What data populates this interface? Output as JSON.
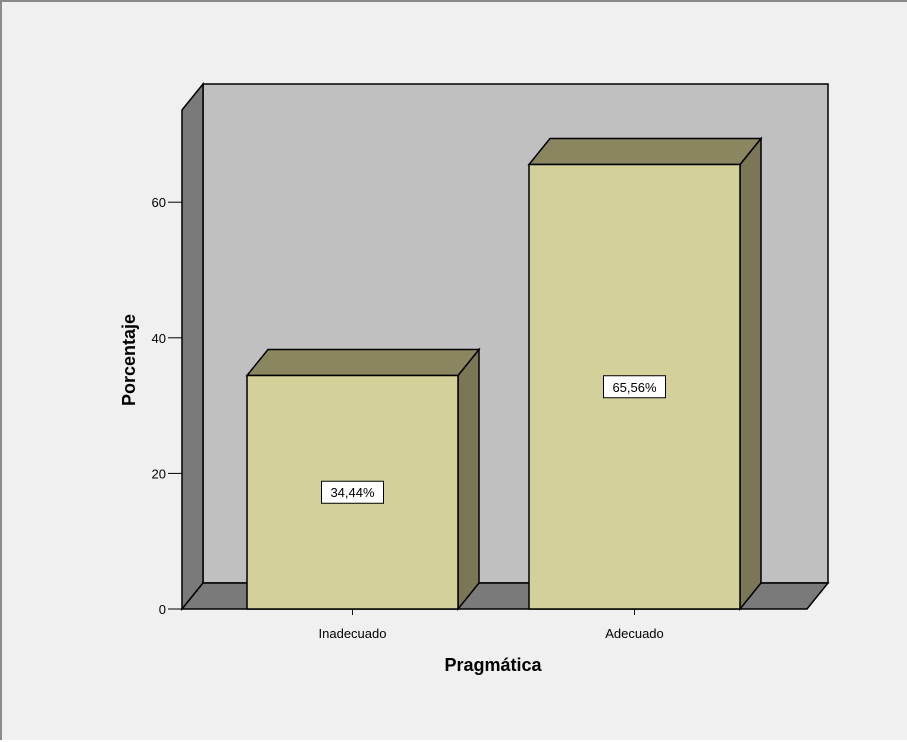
{
  "colors": {
    "background": "#f0f0f0",
    "back_wall": "#c0c0c0",
    "side_wall": "#7a7a7a",
    "floor": "#7a7a7a",
    "bar_front": "#d4d09a",
    "bar_top": "#8a8660",
    "bar_side": "#7a7656",
    "outline": "#000000"
  },
  "chart_data": {
    "type": "bar",
    "categories": [
      "Inadecuado",
      "Adecuado"
    ],
    "values": [
      34.44,
      65.56
    ],
    "data_labels": [
      "34,44%",
      "65,56%"
    ],
    "title": "",
    "xlabel": "Pragmática",
    "ylabel": "Porcentaje",
    "ylim": [
      0,
      70
    ],
    "yticks": [
      0,
      20,
      40,
      60
    ],
    "ytick_labels": [
      "0",
      "20",
      "40",
      "60"
    ],
    "grid": false,
    "style": "3d"
  }
}
